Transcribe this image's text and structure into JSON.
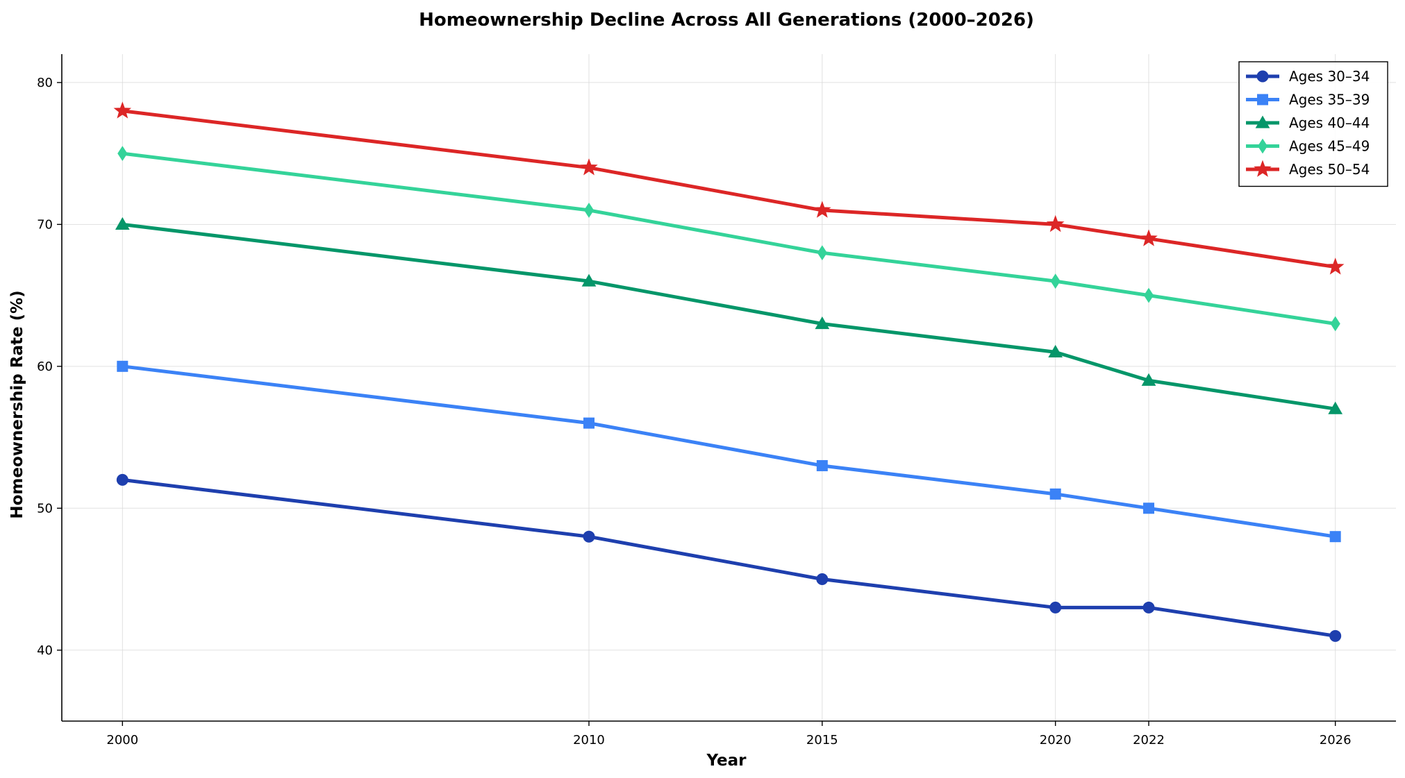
{
  "chart_data": {
    "type": "line",
    "title": "Homeownership Decline Across All Generations (2000–2026)",
    "xlabel": "Year",
    "ylabel": "Homeownership Rate (%)",
    "x": [
      2000,
      2010,
      2015,
      2020,
      2022,
      2026
    ],
    "x_ticks": [
      "2000",
      "2010",
      "2015",
      "2020",
      "2022",
      "2026"
    ],
    "xlim": [
      1998.7,
      2027.3
    ],
    "ylim": [
      35,
      82
    ],
    "y_ticks": [
      40,
      50,
      60,
      70,
      80
    ],
    "grid": true,
    "legend_position": "top-right",
    "series": [
      {
        "name": "Ages 30–34",
        "color": "#1e3fae",
        "marker": "circle",
        "values": [
          52,
          48,
          45,
          43,
          43,
          41
        ]
      },
      {
        "name": "Ages 35–39",
        "color": "#3b82f6",
        "marker": "square",
        "values": [
          60,
          56,
          53,
          51,
          50,
          48
        ]
      },
      {
        "name": "Ages 40–44",
        "color": "#059669",
        "marker": "triangle",
        "values": [
          70,
          66,
          63,
          61,
          59,
          57
        ]
      },
      {
        "name": "Ages 45–49",
        "color": "#34d399",
        "marker": "diamond",
        "values": [
          75,
          71,
          68,
          66,
          65,
          63
        ]
      },
      {
        "name": "Ages 50–54",
        "color": "#dc2626",
        "marker": "star",
        "values": [
          78,
          74,
          71,
          70,
          69,
          67
        ]
      }
    ]
  }
}
